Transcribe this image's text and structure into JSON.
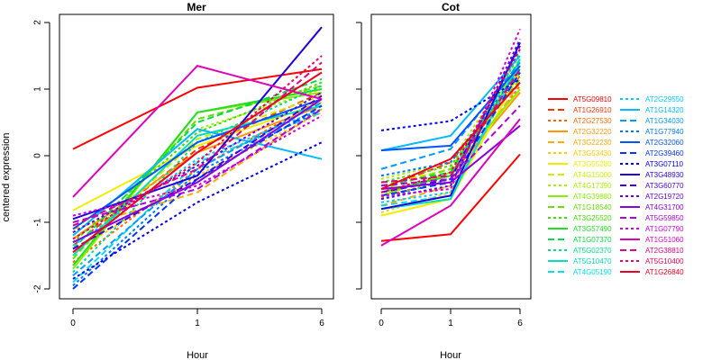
{
  "chart_data": {
    "type": "line",
    "ylabel": "centered expression",
    "xlabel": "Hour",
    "x_ticks": [
      "0",
      "1",
      "6"
    ],
    "y_ticks": [
      -2,
      -1,
      0,
      1,
      2
    ],
    "ylim": [
      -2.1,
      2.1
    ],
    "panels": [
      {
        "title": "Mer"
      },
      {
        "title": "Cot"
      }
    ],
    "series": [
      {
        "name": "AT5G09810",
        "color": "#FF0000",
        "dash": "solid",
        "mer": [
          0.1,
          1.02,
          1.3
        ],
        "cot": [
          -1.28,
          -1.18,
          0.02
        ]
      },
      {
        "name": "AT1G26910",
        "color": "#FF3300",
        "dash": "long",
        "mer": [
          -1.35,
          0.1,
          0.95
        ],
        "cot": [
          -0.5,
          -0.1,
          1.2
        ]
      },
      {
        "name": "AT2G27530",
        "color": "#FF6600",
        "dash": "short",
        "mer": [
          -1.6,
          -0.2,
          0.85
        ],
        "cot": [
          -0.62,
          -0.35,
          1.05
        ]
      },
      {
        "name": "AT2G32220",
        "color": "#FF9900",
        "dash": "solid",
        "mer": [
          -1.25,
          0.05,
          0.75
        ],
        "cot": [
          -0.55,
          -0.3,
          0.95
        ]
      },
      {
        "name": "AT3G22230",
        "color": "#FFAA00",
        "dash": "long",
        "mer": [
          -1.1,
          -0.55,
          0.7
        ],
        "cot": [
          -0.75,
          -0.45,
          1.1
        ]
      },
      {
        "name": "AT3G53430",
        "color": "#FFCC00",
        "dash": "short",
        "mer": [
          -1.45,
          -0.3,
          0.65
        ],
        "cot": [
          -0.85,
          -0.55,
          1.3
        ]
      },
      {
        "name": "AT3G55280",
        "color": "#EEEE00",
        "dash": "solid",
        "mer": [
          -0.82,
          0.15,
          0.8
        ],
        "cot": [
          -0.9,
          -0.65,
          1.25
        ]
      },
      {
        "name": "AT4G15000",
        "color": "#CCEE00",
        "dash": "long",
        "mer": [
          -1.5,
          0.25,
          0.9
        ],
        "cot": [
          -0.45,
          -0.2,
          1.4
        ]
      },
      {
        "name": "AT4G17390",
        "color": "#AAEE00",
        "dash": "short",
        "mer": [
          -1.2,
          0.4,
          1.0
        ],
        "cot": [
          -0.35,
          -0.1,
          1.5
        ]
      },
      {
        "name": "AT4G39880",
        "color": "#88EE00",
        "dash": "solid",
        "mer": [
          -1.7,
          0.65,
          0.95
        ],
        "cot": [
          -0.6,
          -0.25,
          1.0
        ]
      },
      {
        "name": "AT1G18540",
        "color": "#66DD00",
        "dash": "long",
        "mer": [
          -1.55,
          0.55,
          1.05
        ],
        "cot": [
          -0.5,
          -0.2,
          1.15
        ]
      },
      {
        "name": "AT3G25520",
        "color": "#44DD00",
        "dash": "short",
        "mer": [
          -1.3,
          0.35,
          1.1
        ],
        "cot": [
          -0.4,
          -0.15,
          1.25
        ]
      },
      {
        "name": "AT3G57490",
        "color": "#22DD22",
        "dash": "solid",
        "mer": [
          -1.65,
          0.65,
          1.0
        ],
        "cot": [
          -0.55,
          -0.3,
          1.35
        ]
      },
      {
        "name": "AT1G07370",
        "color": "#00DD44",
        "dash": "long",
        "mer": [
          -1.4,
          0.5,
          1.15
        ],
        "cot": [
          -0.45,
          -0.25,
          1.45
        ]
      },
      {
        "name": "AT5G02370",
        "color": "#00DD88",
        "dash": "short",
        "mer": [
          -1.75,
          0.2,
          1.05
        ],
        "cot": [
          -0.65,
          -0.35,
          1.55
        ]
      },
      {
        "name": "AT5G10470",
        "color": "#00DDBB",
        "dash": "solid",
        "mer": [
          -1.5,
          0.3,
          0.75
        ],
        "cot": [
          -0.8,
          -0.65,
          1.45
        ]
      },
      {
        "name": "AT4G05190",
        "color": "#00DDEE",
        "dash": "long",
        "mer": [
          -1.9,
          -0.1,
          0.65
        ],
        "cot": [
          -0.75,
          -0.6,
          1.35
        ]
      },
      {
        "name": "AT2G29550",
        "color": "#00CCFF",
        "dash": "short",
        "mer": [
          -1.35,
          -0.05,
          0.7
        ],
        "cot": [
          -0.7,
          -0.55,
          1.6
        ]
      },
      {
        "name": "AT1G14320",
        "color": "#00BBFF",
        "dash": "solid",
        "mer": [
          -1.2,
          0.4,
          -0.05
        ],
        "cot": [
          0.08,
          0.3,
          1.5
        ]
      },
      {
        "name": "AT1G34030",
        "color": "#0099FF",
        "dash": "long",
        "mer": [
          -1.8,
          -0.2,
          0.8
        ],
        "cot": [
          -0.2,
          0.1,
          1.4
        ]
      },
      {
        "name": "AT1G77940",
        "color": "#0077FF",
        "dash": "short",
        "mer": [
          -1.95,
          -0.25,
          0.7
        ],
        "cot": [
          -0.3,
          -0.1,
          1.3
        ]
      },
      {
        "name": "AT2G32060",
        "color": "#0055FF",
        "dash": "solid",
        "mer": [
          -1.1,
          0.2,
          0.85
        ],
        "cot": [
          0.08,
          0.15,
          1.35
        ]
      },
      {
        "name": "AT2G39460",
        "color": "#0033FF",
        "dash": "long",
        "mer": [
          -2.0,
          -0.35,
          0.75
        ],
        "cot": [
          -0.6,
          -0.4,
          1.25
        ]
      },
      {
        "name": "AT3G07110",
        "color": "#0000EE",
        "dash": "short",
        "mer": [
          -1.85,
          -0.7,
          0.2
        ],
        "cot": [
          0.38,
          0.52,
          1.15
        ]
      },
      {
        "name": "AT3G48930",
        "color": "#2200DD",
        "dash": "solid",
        "mer": [
          -0.95,
          -0.3,
          1.93
        ],
        "cot": [
          -0.8,
          -0.6,
          1.7
        ]
      },
      {
        "name": "AT3G60770",
        "color": "#4400DD",
        "dash": "long",
        "mer": [
          -1.4,
          -0.35,
          0.9
        ],
        "cot": [
          -0.55,
          -0.35,
          1.65
        ]
      },
      {
        "name": "AT2G19720",
        "color": "#6600DD",
        "dash": "short",
        "mer": [
          -1.15,
          -0.15,
          0.95
        ],
        "cot": [
          -0.65,
          -0.45,
          1.75
        ]
      },
      {
        "name": "AT4G31700",
        "color": "#8800DD",
        "dash": "solid",
        "mer": [
          -1.3,
          -0.4,
          0.85
        ],
        "cot": [
          -0.5,
          -0.4,
          0.45
        ]
      },
      {
        "name": "AT5G59850",
        "color": "#AA00DD",
        "dash": "long",
        "mer": [
          -1.0,
          -0.5,
          0.7
        ],
        "cot": [
          -0.45,
          -0.35,
          0.75
        ]
      },
      {
        "name": "AT1G07790",
        "color": "#CC00DD",
        "dash": "short",
        "mer": [
          -0.9,
          -0.45,
          0.6
        ],
        "cot": [
          -0.6,
          -0.5,
          1.9
        ]
      },
      {
        "name": "AT1G51060",
        "color": "#DD00BB",
        "dash": "solid",
        "mer": [
          -0.62,
          1.35,
          0.85
        ],
        "cot": [
          -1.35,
          -0.75,
          0.55
        ]
      },
      {
        "name": "AT2G38810",
        "color": "#DD0088",
        "dash": "long",
        "mer": [
          -1.05,
          -0.2,
          1.4
        ],
        "cot": [
          -0.4,
          -0.3,
          1.3
        ]
      },
      {
        "name": "AT5G10400",
        "color": "#EE0055",
        "dash": "short",
        "mer": [
          -1.25,
          -0.1,
          1.5
        ],
        "cot": [
          -0.55,
          -0.25,
          1.6
        ]
      },
      {
        "name": "AT1G26840",
        "color": "#EE0022",
        "dash": "solid",
        "mer": [
          -1.45,
          0.05,
          1.25
        ],
        "cot": [
          -0.5,
          -0.05,
          1.1
        ]
      }
    ]
  }
}
